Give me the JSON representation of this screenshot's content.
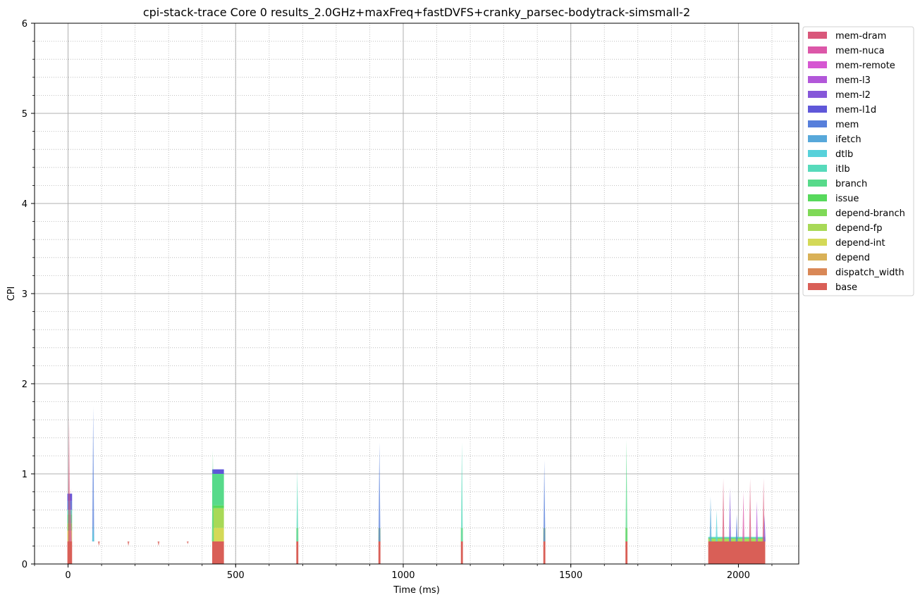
{
  "chart_data": {
    "type": "area",
    "stacked": true,
    "title": "cpi-stack-trace Core 0 results_2.0GHz+maxFreq+fastDVFS+cranky_parsec-bodytrack-simsmall-2",
    "xlabel": "Time (ms)",
    "ylabel": "CPI",
    "xlim": [
      -100,
      2180
    ],
    "ylim": [
      0,
      6
    ],
    "x_ticks": [
      0,
      500,
      1000,
      1500,
      2000
    ],
    "x_minor_step": 100,
    "y_ticks": [
      0,
      1,
      2,
      3,
      4,
      5,
      6
    ],
    "y_minor_step": 0.2,
    "grid": true,
    "legend_position": "outside-top-right",
    "legend": [
      {
        "name": "mem-dram",
        "color": "#d9577a"
      },
      {
        "name": "mem-nuca",
        "color": "#dc57a8"
      },
      {
        "name": "mem-remote",
        "color": "#d657d2"
      },
      {
        "name": "mem-l3",
        "color": "#b257d9"
      },
      {
        "name": "mem-l2",
        "color": "#8657d9"
      },
      {
        "name": "mem-l1d",
        "color": "#5f57d9"
      },
      {
        "name": "mem",
        "color": "#577fdb"
      },
      {
        "name": "ifetch",
        "color": "#57a8da"
      },
      {
        "name": "dtlb",
        "color": "#57d1da"
      },
      {
        "name": "itlb",
        "color": "#57dabb"
      },
      {
        "name": "branch",
        "color": "#57da8a"
      },
      {
        "name": "issue",
        "color": "#57d95c"
      },
      {
        "name": "depend-branch",
        "color": "#7fd957"
      },
      {
        "name": "depend-fp",
        "color": "#a8d957"
      },
      {
        "name": "depend-int",
        "color": "#d4d957"
      },
      {
        "name": "depend",
        "color": "#d9b157"
      },
      {
        "name": "dispatch_width",
        "color": "#d98857"
      },
      {
        "name": "base",
        "color": "#d95f57"
      }
    ],
    "segments": [
      {
        "x": [
          -2,
          12
        ],
        "stack": [
          {
            "c": "base",
            "v": 0.25
          },
          {
            "c": "depend-int",
            "v": 0.12
          },
          {
            "c": "depend-branch",
            "v": 0.08
          },
          {
            "c": "branch",
            "v": 0.1
          },
          {
            "c": "itlb",
            "v": 0.05
          },
          {
            "c": "mem",
            "v": 0.1
          },
          {
            "c": "mem-l1d",
            "v": 0.08
          }
        ]
      },
      {
        "x": [
          430,
          465
        ],
        "stack": [
          {
            "c": "base",
            "v": 0.25
          },
          {
            "c": "depend-int",
            "v": 0.15
          },
          {
            "c": "depend-fp",
            "v": 0.22
          },
          {
            "c": "issue",
            "v": 0.03
          },
          {
            "c": "branch",
            "v": 0.35
          },
          {
            "c": "mem-l1d",
            "v": 0.05
          }
        ]
      },
      {
        "x": [
          681,
          687
        ],
        "stack": [
          {
            "c": "base",
            "v": 0.25
          },
          {
            "c": "depend-fp",
            "v": 0.15
          }
        ]
      },
      {
        "x": [
          926,
          932
        ],
        "stack": [
          {
            "c": "base",
            "v": 0.25
          },
          {
            "c": "depend-fp",
            "v": 0.15
          }
        ]
      },
      {
        "x": [
          1172,
          1178
        ],
        "stack": [
          {
            "c": "base",
            "v": 0.25
          },
          {
            "c": "depend-fp",
            "v": 0.15
          }
        ]
      },
      {
        "x": [
          1418,
          1424
        ],
        "stack": [
          {
            "c": "base",
            "v": 0.25
          },
          {
            "c": "depend-fp",
            "v": 0.15
          }
        ]
      },
      {
        "x": [
          1663,
          1669
        ],
        "stack": [
          {
            "c": "base",
            "v": 0.25
          },
          {
            "c": "depend-fp",
            "v": 0.15
          }
        ]
      },
      {
        "x": [
          1910,
          2080
        ],
        "stack": [
          {
            "c": "base",
            "v": 0.25
          },
          {
            "c": "depend-fp",
            "v": 0.03
          },
          {
            "c": "branch",
            "v": 0.01
          },
          {
            "c": "itlb",
            "v": 0.01
          }
        ]
      }
    ],
    "spikes": [
      {
        "x": 3,
        "top": 1.65,
        "c": "mem-dram"
      },
      {
        "x": 8,
        "top": 0.85,
        "c": "mem-nuca"
      },
      {
        "x": 75,
        "top": 1.75,
        "c": "mem"
      },
      {
        "x": 75,
        "top": 0.45,
        "c": "dtlb"
      },
      {
        "x": 92,
        "top": 0.2,
        "c": "base"
      },
      {
        "x": 180,
        "top": 0.2,
        "c": "base"
      },
      {
        "x": 270,
        "top": 0.2,
        "c": "base"
      },
      {
        "x": 357,
        "top": 0.22,
        "c": "base"
      },
      {
        "x": 432,
        "top": 1.26,
        "c": "branch"
      },
      {
        "x": 684,
        "top": 1.05,
        "c": "itlb"
      },
      {
        "x": 929,
        "top": 1.35,
        "c": "mem"
      },
      {
        "x": 1175,
        "top": 1.35,
        "c": "itlb"
      },
      {
        "x": 1421,
        "top": 1.15,
        "c": "mem"
      },
      {
        "x": 1666,
        "top": 1.38,
        "c": "branch"
      },
      {
        "x": 1917,
        "top": 0.75,
        "c": "ifetch"
      },
      {
        "x": 1935,
        "top": 0.6,
        "c": "dtlb"
      },
      {
        "x": 1955,
        "top": 0.95,
        "c": "mem-dram"
      },
      {
        "x": 1975,
        "top": 0.85,
        "c": "mem-l2"
      },
      {
        "x": 1995,
        "top": 0.55,
        "c": "mem"
      },
      {
        "x": 2015,
        "top": 0.8,
        "c": "mem-nuca"
      },
      {
        "x": 2035,
        "top": 0.95,
        "c": "mem-dram"
      },
      {
        "x": 2055,
        "top": 0.7,
        "c": "mem-l3"
      },
      {
        "x": 2075,
        "top": 0.95,
        "c": "mem-dram"
      },
      {
        "x": 2078,
        "top": 0.55,
        "c": "mem-l2"
      }
    ]
  }
}
